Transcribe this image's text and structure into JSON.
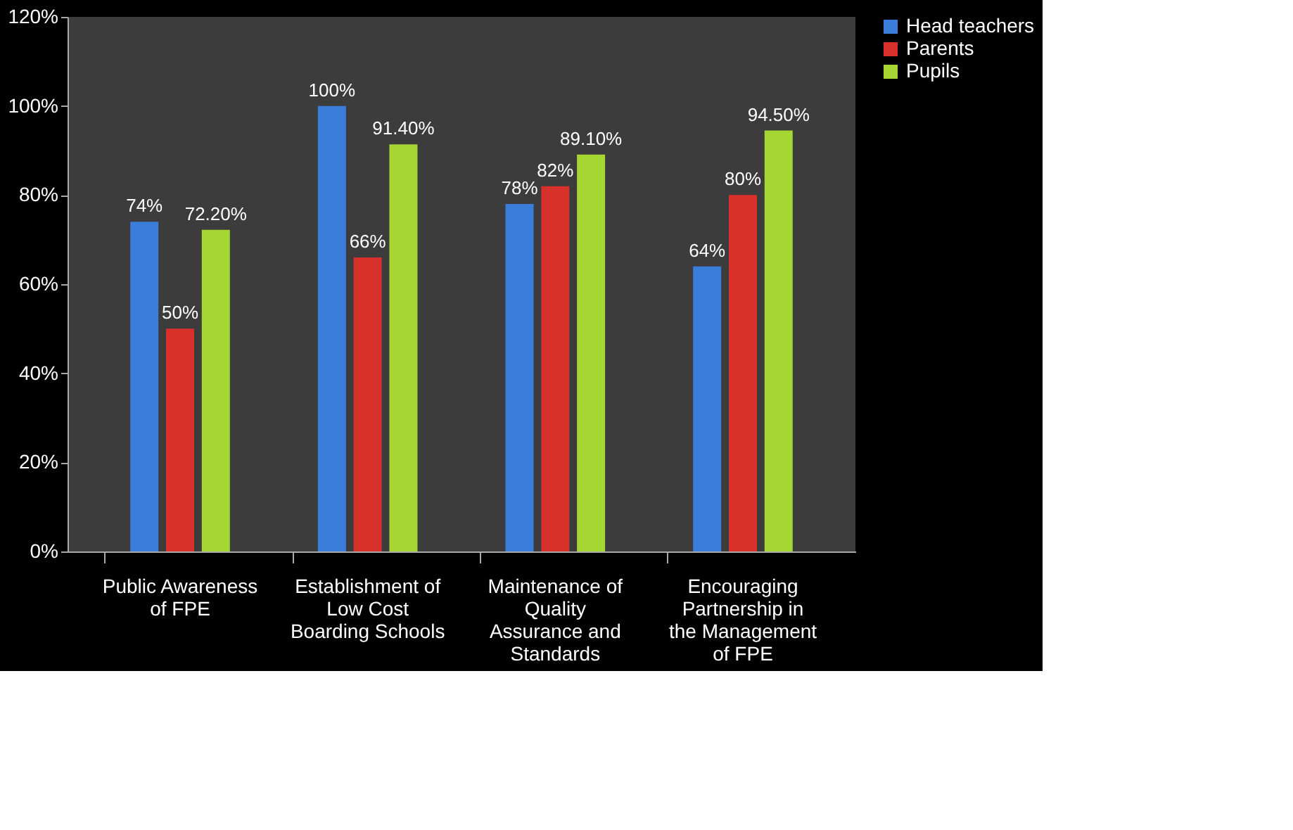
{
  "chart_data": {
    "type": "bar",
    "categories": [
      "Public Awareness of FPE",
      "Establishment of Low Cost Boarding Schools",
      "Maintenance of Quality Assurance and Standards",
      "Encouraging Partnership in the Management of FPE"
    ],
    "series": [
      {
        "name": "Head teachers",
        "color": "#3b7ddb",
        "values": [
          74,
          100,
          78,
          64
        ],
        "value_labels": [
          "74%",
          "100%",
          "78%",
          "64%"
        ]
      },
      {
        "name": "Parents",
        "color": "#d8312c",
        "values": [
          50,
          66,
          82,
          80
        ],
        "value_labels": [
          "50%",
          "66%",
          "82%",
          "80%"
        ]
      },
      {
        "name": "Pupils",
        "color": "#a5d631",
        "values": [
          72.2,
          91.4,
          89.1,
          94.5
        ],
        "value_labels": [
          "72.20%",
          "91.40%",
          "89.10%",
          "94.50%"
        ]
      }
    ],
    "ylim": [
      0,
      120
    ],
    "yticks": [
      {
        "value": 0,
        "label": "0%"
      },
      {
        "value": 20,
        "label": "20%"
      },
      {
        "value": 40,
        "label": "40%"
      },
      {
        "value": 60,
        "label": "60%"
      },
      {
        "value": 80,
        "label": "80%"
      },
      {
        "value": 100,
        "label": "100%"
      },
      {
        "value": 120,
        "label": "120%"
      }
    ],
    "grid": false,
    "legend": "right"
  }
}
